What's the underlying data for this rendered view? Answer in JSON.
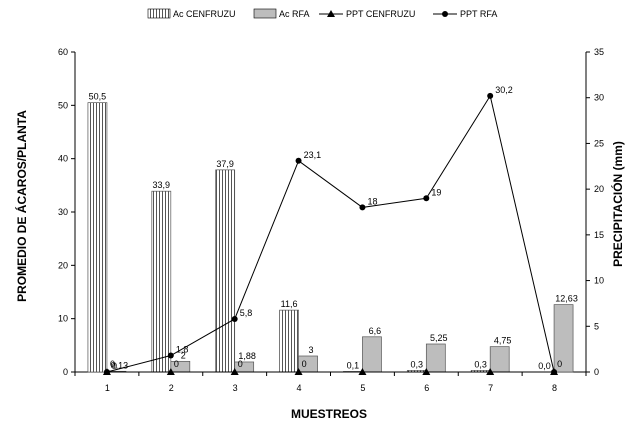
{
  "chart_data": {
    "type": "bar",
    "categories": [
      "1",
      "2",
      "3",
      "4",
      "5",
      "6",
      "7",
      "8"
    ],
    "xlabel": "MUESTREOS",
    "ylabel": "PROMEDIO DE ÁCAROS/PLANTA",
    "y2label": "PRECIPITACIÓN (mm)",
    "ylim": [
      0,
      60
    ],
    "y2lim": [
      0,
      35
    ],
    "yticks": [
      "0",
      "10",
      "20",
      "30",
      "40",
      "50",
      "60"
    ],
    "y2ticks": [
      "0",
      "5",
      "10",
      "15",
      "20",
      "25",
      "30",
      "35"
    ],
    "grid": false,
    "legend_position": "top-center",
    "series": [
      {
        "name": "Ac CENFRUZU",
        "kind": "bar",
        "axis": "left",
        "pattern": "vertical-stripes",
        "color": "#ffffff",
        "values": [
          50.5,
          33.9,
          37.9,
          11.6,
          0.1,
          0.3,
          0.3,
          0.0
        ],
        "labels": [
          "50,5",
          "33,9",
          "37,9",
          "11,6",
          "0,1",
          "0,3",
          "0,3",
          "0,0"
        ]
      },
      {
        "name": "Ac RFA",
        "kind": "bar",
        "axis": "left",
        "pattern": "solid",
        "color": "#bdbdbd",
        "values": [
          0.13,
          2,
          1.88,
          3,
          6.6,
          5.25,
          4.75,
          12.63
        ],
        "labels": [
          "0,13",
          "2",
          "1,88",
          "3",
          "6,6",
          "5,25",
          "4,75",
          "12,63"
        ]
      },
      {
        "name": "PPT CENFRUZU",
        "kind": "line",
        "axis": "right",
        "marker": "triangle",
        "color": "#000000",
        "values": [
          0,
          0,
          0,
          0,
          0,
          0,
          0,
          0
        ],
        "labels": [
          "0",
          "0",
          "0",
          "0",
          "",
          "",
          "",
          "0"
        ]
      },
      {
        "name": "PPT RFA",
        "kind": "line",
        "axis": "right",
        "marker": "circle",
        "color": "#000000",
        "values": [
          0,
          1.8,
          5.8,
          23.1,
          18,
          19,
          30.2,
          0
        ],
        "labels": [
          "0",
          "1,8",
          "5,8",
          "23,1",
          "18",
          "19",
          "30,2",
          ""
        ]
      }
    ]
  }
}
